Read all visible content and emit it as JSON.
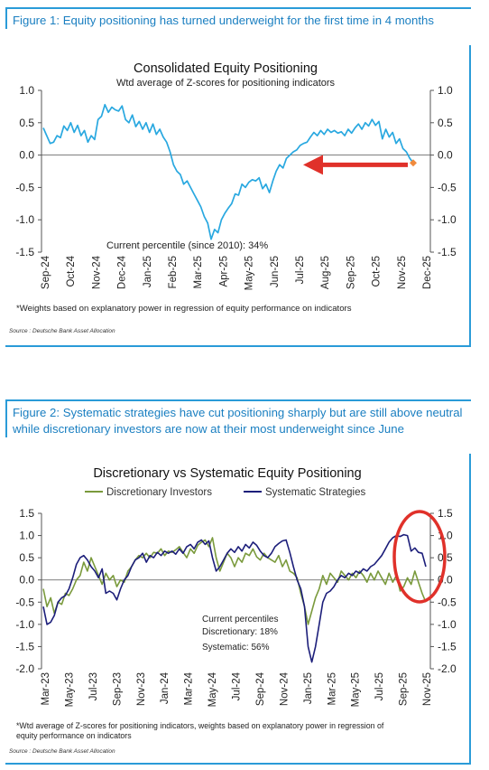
{
  "figure1": {
    "heading": "Figure 1: Equity positioning has turned underweight for the first time in 4 months",
    "source": "Source : Deutsche Bank Asset Allocation",
    "chart_data": {
      "type": "line",
      "title": "Consolidated Equity Positioning",
      "subtitle": "Wtd average of Z-scores for positioning indicators",
      "xlabel": "",
      "ylabel": "",
      "ylim": [
        -1.5,
        1.0
      ],
      "yticks": [
        "1.0",
        "0.5",
        "0.0",
        "-0.5",
        "-1.0",
        "-1.5"
      ],
      "yticks_right": [
        "1.0",
        "0.5",
        "0.0",
        "-0.5",
        "-1.0",
        "-1.5"
      ],
      "xticks": [
        "Sep-24",
        "Oct-24",
        "Nov-24",
        "Dec-24",
        "Jan-25",
        "Feb-25",
        "Mar-25",
        "Apr-25",
        "May-25",
        "Jun-25",
        "Jul-25",
        "Aug-25",
        "Sep-25",
        "Oct-25",
        "Nov-25",
        "Dec-25"
      ],
      "annotation": "Current percentile (since 2010): 34%",
      "footnote": "*Weights based on explanatory power in regression of equity performance on indicators",
      "line_color": "#29a8e0",
      "last_point_color": "#f08a3c",
      "arrow_color": "#e0312a",
      "series": [
        {
          "values": [
            0.42,
            0.3,
            0.18,
            0.2,
            0.3,
            0.27,
            0.45,
            0.38,
            0.5,
            0.35,
            0.46,
            0.3,
            0.38,
            0.2,
            0.3,
            0.24,
            0.55,
            0.6,
            0.78,
            0.66,
            0.74,
            0.7,
            0.68,
            0.76,
            0.55,
            0.5,
            0.62,
            0.44,
            0.52,
            0.4,
            0.5,
            0.35,
            0.48,
            0.32,
            0.4,
            0.28,
            0.2,
            0.05,
            -0.15,
            -0.25,
            -0.3,
            -0.45,
            -0.4,
            -0.5,
            -0.6,
            -0.7,
            -0.8,
            -0.95,
            -1.05,
            -1.3,
            -1.15,
            -1.2,
            -1.0,
            -0.9,
            -0.82,
            -0.75,
            -0.6,
            -0.62,
            -0.45,
            -0.5,
            -0.42,
            -0.38,
            -0.4,
            -0.35,
            -0.52,
            -0.45,
            -0.58,
            -0.4,
            -0.25,
            -0.15,
            -0.2,
            -0.05,
            0.0,
            0.05,
            0.08,
            0.15,
            0.18,
            0.2,
            0.28,
            0.35,
            0.3,
            0.38,
            0.32,
            0.4,
            0.35,
            0.38,
            0.34,
            0.36,
            0.3,
            0.4,
            0.34,
            0.42,
            0.48,
            0.4,
            0.5,
            0.45,
            0.55,
            0.46,
            0.52,
            0.25,
            0.4,
            0.28,
            0.35,
            0.18,
            0.25,
            0.1,
            0.05,
            -0.05,
            -0.12
          ]
        }
      ]
    }
  },
  "figure2": {
    "heading": "Figure 2: Systematic strategies have cut positioning sharply but are still above neutral while discretionary investors are now at their most underweight since June",
    "source": "Source : Deutsche Bank Asset Allocation",
    "chart_data": {
      "type": "line",
      "title": "Discretionary  vs Systematic Equity Positioning",
      "xlabel": "",
      "ylabel": "",
      "ylim": [
        -2.0,
        1.5
      ],
      "yticks": [
        "1.5",
        "1.0",
        "0.5",
        "0.0",
        "-0.5",
        "-1.0",
        "-1.5",
        "-2.0"
      ],
      "yticks_right": [
        "1.5",
        "1.0",
        "0.5",
        "0.0",
        "-0.5",
        "-1.0",
        "-1.5",
        "-2.0"
      ],
      "xticks": [
        "Mar-23",
        "May-23",
        "Jul-23",
        "Sep-23",
        "Nov-23",
        "Jan-24",
        "Mar-24",
        "May-24",
        "Jul-24",
        "Sep-24",
        "Nov-24",
        "Jan-25",
        "Mar-25",
        "May-25",
        "Jul-25",
        "Sep-25",
        "Nov-25"
      ],
      "annotation": [
        "Current percentiles",
        "Discretionary: 18%",
        "Systematic: 56%"
      ],
      "footnote": "*Wtd average of Z-scores for positioning indicators, weights based on explanatory power in regression of equity performance on indicators",
      "circle_color": "#e0312a",
      "series": [
        {
          "name": "Discretionary Investors",
          "color": "#7a9a3c",
          "values": [
            -0.2,
            -0.6,
            -0.4,
            -0.75,
            -0.5,
            -0.55,
            -0.3,
            -0.35,
            -0.2,
            0.0,
            0.1,
            0.4,
            0.2,
            0.5,
            0.3,
            0.1,
            -0.1,
            0.15,
            0.0,
            0.1,
            -0.15,
            0.0,
            -0.05,
            0.2,
            0.3,
            0.45,
            0.55,
            0.5,
            0.6,
            0.5,
            0.62,
            0.6,
            0.7,
            0.55,
            0.65,
            0.62,
            0.68,
            0.75,
            0.62,
            0.5,
            0.7,
            0.6,
            0.78,
            0.85,
            0.9,
            0.75,
            0.95,
            0.5,
            0.2,
            0.4,
            0.6,
            0.5,
            0.3,
            0.5,
            0.4,
            0.6,
            0.55,
            0.7,
            0.52,
            0.45,
            0.6,
            0.5,
            0.45,
            0.4,
            0.55,
            0.3,
            0.45,
            0.2,
            0.15,
            0.05,
            -0.3,
            -0.6,
            -1.0,
            -0.7,
            -0.4,
            -0.2,
            0.1,
            -0.1,
            0.15,
            0.05,
            -0.05,
            0.2,
            0.1,
            0.0,
            0.15,
            0.05,
            0.2,
            0.1,
            -0.05,
            0.15,
            0.0,
            0.2,
            0.05,
            -0.1,
            0.15,
            -0.05,
            0.1,
            -0.25,
            -0.15,
            0.05,
            -0.1,
            0.2,
            -0.05,
            -0.3,
            -0.5
          ]
        },
        {
          "name": "Systematic Strategies",
          "color": "#1c1e7a",
          "values": [
            -0.6,
            -1.0,
            -0.95,
            -0.8,
            -0.5,
            -0.4,
            -0.35,
            -0.2,
            0.05,
            0.35,
            0.5,
            0.55,
            0.45,
            0.3,
            0.2,
            0.05,
            0.25,
            -0.3,
            -0.25,
            -0.3,
            -0.45,
            -0.2,
            0.0,
            0.1,
            0.3,
            0.45,
            0.5,
            0.6,
            0.4,
            0.55,
            0.5,
            0.62,
            0.55,
            0.65,
            0.6,
            0.65,
            0.58,
            0.7,
            0.6,
            0.75,
            0.8,
            0.7,
            0.85,
            0.9,
            0.8,
            0.88,
            0.5,
            0.2,
            0.3,
            0.45,
            0.6,
            0.7,
            0.62,
            0.75,
            0.65,
            0.8,
            0.72,
            0.85,
            0.78,
            0.65,
            0.55,
            0.5,
            0.6,
            0.75,
            0.82,
            0.88,
            0.9,
            0.62,
            0.3,
            0.0,
            -0.2,
            -0.6,
            -1.5,
            -1.85,
            -1.5,
            -1.0,
            -0.5,
            -0.3,
            -0.25,
            -0.15,
            0.0,
            0.1,
            0.05,
            0.15,
            0.1,
            0.2,
            0.15,
            0.25,
            0.2,
            0.3,
            0.35,
            0.45,
            0.55,
            0.7,
            0.85,
            0.95,
            1.0,
            0.98,
            1.02,
            1.0,
            0.65,
            0.72,
            0.62,
            0.6,
            0.3
          ]
        }
      ]
    }
  }
}
